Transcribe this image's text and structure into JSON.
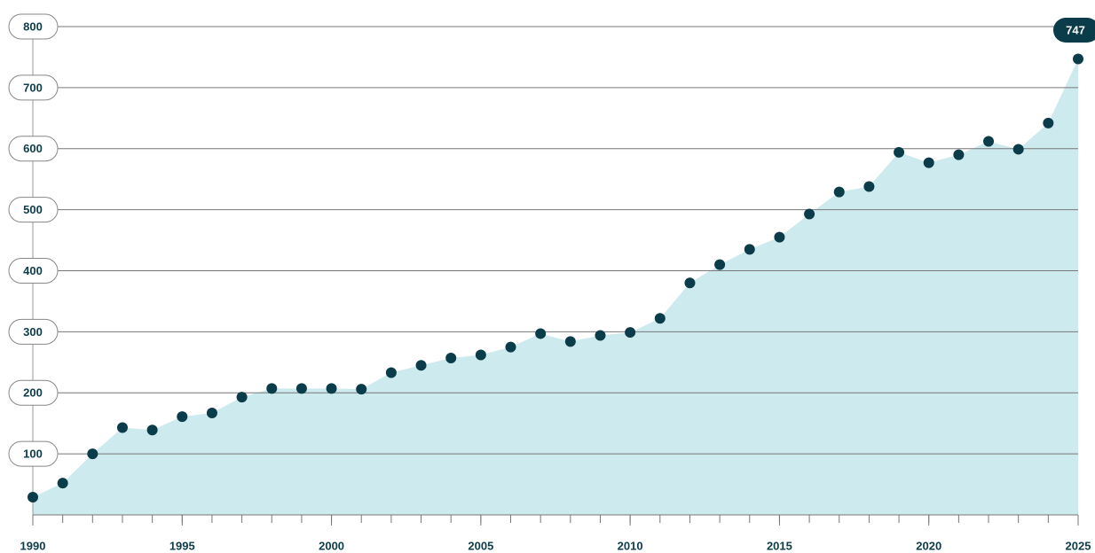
{
  "chart_data": {
    "type": "area",
    "x": [
      1990,
      1991,
      1992,
      1993,
      1994,
      1995,
      1996,
      1997,
      1998,
      1999,
      2000,
      2001,
      2002,
      2003,
      2004,
      2005,
      2006,
      2007,
      2008,
      2009,
      2010,
      2011,
      2012,
      2013,
      2014,
      2015,
      2016,
      2017,
      2018,
      2019,
      2020,
      2021,
      2022,
      2023,
      2024,
      2025
    ],
    "series": [
      {
        "color": "#0b3c49",
        "fill": "#cdeaee",
        "values": [
          29,
          52,
          100,
          143,
          139,
          161,
          167,
          193,
          207,
          207,
          207,
          206,
          233,
          245,
          257,
          262,
          275,
          297,
          284,
          294,
          299,
          322,
          380,
          410,
          435,
          455,
          493,
          529,
          538,
          594,
          577,
          590,
          612,
          599,
          642,
          747
        ]
      }
    ],
    "xlim": [
      1990,
      2025
    ],
    "xticks": [
      1990,
      1995,
      2000,
      2005,
      2010,
      2015,
      2020,
      2025
    ],
    "ylim": [
      0,
      800
    ],
    "yticks": [
      100,
      200,
      300,
      400,
      500,
      600,
      700,
      800
    ],
    "grid": true
  }
}
